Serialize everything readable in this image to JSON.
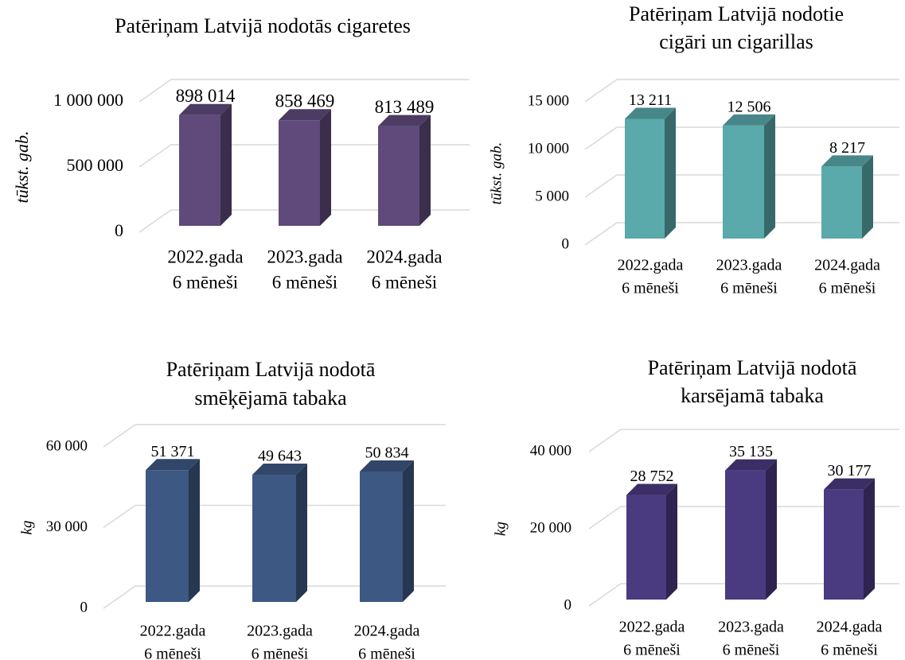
{
  "chart_data": [
    {
      "type": "bar3d",
      "title": [
        "Patēriņam Latvijā nodotās cigaretes"
      ],
      "y_label": "tūkst. gab.",
      "categories": [
        [
          "2022.gada",
          "6 mēneši"
        ],
        [
          "2023.gada",
          "6 mēneši"
        ],
        [
          "2024.gada",
          "6 mēneši"
        ]
      ],
      "values": [
        898014,
        858469,
        813489
      ],
      "value_labels": [
        "898 014",
        "858 469",
        "813 489"
      ],
      "color": "#5f4a7b",
      "ylim": [
        0,
        1000000
      ],
      "yticks": [
        0,
        {
          "value": 500000,
          "label": "500 000"
        },
        {
          "value": 1000000,
          "label": "1 000 000"
        }
      ],
      "grid": true
    },
    {
      "type": "bar3d",
      "title": [
        "Patēriņam Latvijā nodotie",
        "cigāri un cigarillas"
      ],
      "y_label": "tūkst. gab.",
      "categories": [
        [
          "2022.gada",
          "6 mēneši"
        ],
        [
          "2023.gada",
          "6 mēneši"
        ],
        [
          "2024.gada",
          "6 mēneši"
        ]
      ],
      "values": [
        13211,
        12506,
        8217
      ],
      "value_labels": [
        "13 211",
        "12 506",
        "8 217"
      ],
      "color": "#5aa9ab",
      "ylim": [
        0,
        15000
      ],
      "yticks": [
        0,
        {
          "value": 5000,
          "label": "5 000"
        },
        {
          "value": 10000,
          "label": "10 000"
        },
        {
          "value": 15000,
          "label": "15 000"
        }
      ],
      "grid": true
    },
    {
      "type": "bar3d",
      "title": [
        "Patēriņam Latvijā nodotā",
        "smēķējamā tabaka"
      ],
      "y_label": "kg",
      "categories": [
        [
          "2022.gada",
          "6 mēneši"
        ],
        [
          "2023.gada",
          "6 mēneši"
        ],
        [
          "2024.gada",
          "6 mēneši"
        ]
      ],
      "values": [
        51371,
        49643,
        50834
      ],
      "value_labels": [
        "51 371",
        "49 643",
        "50 834"
      ],
      "color": "#3d5882",
      "ylim": [
        0,
        60000
      ],
      "yticks": [
        0,
        {
          "value": 30000,
          "label": "30 000"
        },
        {
          "value": 60000,
          "label": "60 000"
        }
      ],
      "grid": true
    },
    {
      "type": "bar3d",
      "title": [
        "Patēriņam Latvijā nodotā",
        "karsējamā tabaka"
      ],
      "y_label": "kg",
      "categories": [
        [
          "2022.gada",
          "6 mēneši"
        ],
        [
          "2023.gada",
          "6 mēneši"
        ],
        [
          "2024.gada",
          "6 mēneši"
        ]
      ],
      "values": [
        28752,
        35135,
        30177
      ],
      "value_labels": [
        "28 752",
        "35 135",
        "30 177"
      ],
      "color": "#4a3a80",
      "ylim": [
        0,
        40000
      ],
      "yticks": [
        0,
        {
          "value": 20000,
          "label": "20 000"
        },
        {
          "value": 40000,
          "label": "40 000"
        }
      ],
      "grid": true
    }
  ]
}
